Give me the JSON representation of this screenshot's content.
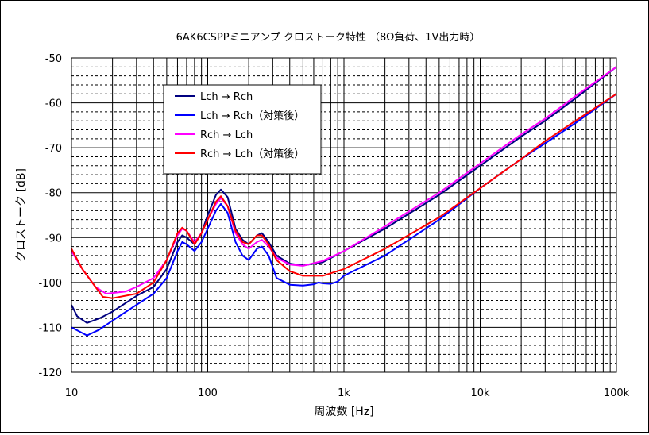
{
  "chart_data": {
    "type": "line",
    "title": "6AK6CSPPミニアンプ クロストーク特性 （8Ω負荷、1V出力時）",
    "xlabel": "周波数 [Hz]",
    "ylabel": "クロストーク [dB]",
    "x_scale": "log",
    "xlim": [
      10,
      100000
    ],
    "ylim": [
      -120,
      -50
    ],
    "grid": true,
    "legend_position": "top-left",
    "x_ticks": [
      {
        "value": 10,
        "label": "10"
      },
      {
        "value": 100,
        "label": "100"
      },
      {
        "value": 1000,
        "label": "1k"
      },
      {
        "value": 10000,
        "label": "10k"
      },
      {
        "value": 100000,
        "label": "100k"
      }
    ],
    "y_ticks": [
      {
        "value": -50,
        "label": "-50"
      },
      {
        "value": -60,
        "label": "-60"
      },
      {
        "value": -70,
        "label": "-70"
      },
      {
        "value": -80,
        "label": "-80"
      },
      {
        "value": -90,
        "label": "-90"
      },
      {
        "value": -100,
        "label": "-100"
      },
      {
        "value": -110,
        "label": "-110"
      },
      {
        "value": -120,
        "label": "-120"
      }
    ],
    "series": [
      {
        "name": "Lch → Rch",
        "color": "#000080",
        "points": [
          [
            10,
            -105
          ],
          [
            11,
            -107.5
          ],
          [
            13,
            -109
          ],
          [
            16,
            -108
          ],
          [
            20,
            -106.5
          ],
          [
            30,
            -103
          ],
          [
            40,
            -101
          ],
          [
            50,
            -97
          ],
          [
            60,
            -91
          ],
          [
            65,
            -89.5
          ],
          [
            70,
            -90
          ],
          [
            80,
            -91.5
          ],
          [
            90,
            -89
          ],
          [
            100,
            -85
          ],
          [
            115,
            -80.5
          ],
          [
            125,
            -79.3
          ],
          [
            140,
            -81
          ],
          [
            160,
            -88
          ],
          [
            180,
            -90.5
          ],
          [
            200,
            -91.5
          ],
          [
            230,
            -89.5
          ],
          [
            250,
            -89
          ],
          [
            280,
            -91
          ],
          [
            320,
            -94
          ],
          [
            400,
            -95.8
          ],
          [
            500,
            -96.2
          ],
          [
            700,
            -95.5
          ],
          [
            1000,
            -93
          ],
          [
            2000,
            -88
          ],
          [
            5000,
            -80.5
          ],
          [
            10000,
            -74
          ],
          [
            20000,
            -67.5
          ],
          [
            30000,
            -64
          ],
          [
            50000,
            -59
          ],
          [
            100000,
            -52
          ]
        ]
      },
      {
        "name": "Lch → Rch（対策後）",
        "color": "#0000ff",
        "points": [
          [
            10,
            -110
          ],
          [
            13,
            -111.8
          ],
          [
            16,
            -110.5
          ],
          [
            20,
            -108.5
          ],
          [
            30,
            -105
          ],
          [
            40,
            -102.5
          ],
          [
            50,
            -99
          ],
          [
            60,
            -93
          ],
          [
            65,
            -91
          ],
          [
            70,
            -91.5
          ],
          [
            80,
            -93
          ],
          [
            90,
            -91
          ],
          [
            100,
            -88
          ],
          [
            115,
            -84
          ],
          [
            125,
            -82.5
          ],
          [
            140,
            -84.5
          ],
          [
            160,
            -91
          ],
          [
            180,
            -94
          ],
          [
            200,
            -95
          ],
          [
            230,
            -92.5
          ],
          [
            250,
            -92
          ],
          [
            280,
            -94
          ],
          [
            320,
            -99
          ],
          [
            400,
            -100.5
          ],
          [
            500,
            -100.7
          ],
          [
            600,
            -100.4
          ],
          [
            650,
            -100
          ],
          [
            700,
            -100.2
          ],
          [
            800,
            -100.3
          ],
          [
            900,
            -99.8
          ],
          [
            1000,
            -98.5
          ],
          [
            2000,
            -94
          ],
          [
            5000,
            -86
          ],
          [
            10000,
            -79
          ],
          [
            20000,
            -72.5
          ],
          [
            30000,
            -69
          ],
          [
            50000,
            -64.5
          ],
          [
            100000,
            -58
          ]
        ]
      },
      {
        "name": "Rch → Lch",
        "color": "#ff00ff",
        "points": [
          [
            10,
            -93
          ],
          [
            12,
            -97
          ],
          [
            15,
            -101
          ],
          [
            18,
            -102.5
          ],
          [
            25,
            -102
          ],
          [
            30,
            -101
          ],
          [
            40,
            -99
          ],
          [
            50,
            -95
          ],
          [
            60,
            -89.5
          ],
          [
            65,
            -88
          ],
          [
            70,
            -88.5
          ],
          [
            80,
            -91
          ],
          [
            90,
            -89
          ],
          [
            100,
            -86
          ],
          [
            115,
            -82.5
          ],
          [
            125,
            -81.2
          ],
          [
            140,
            -83
          ],
          [
            160,
            -89
          ],
          [
            180,
            -91.5
          ],
          [
            200,
            -92.5
          ],
          [
            230,
            -91
          ],
          [
            250,
            -90.5
          ],
          [
            280,
            -92
          ],
          [
            320,
            -94.5
          ],
          [
            400,
            -96
          ],
          [
            500,
            -96.3
          ],
          [
            700,
            -95.2
          ],
          [
            1000,
            -93
          ],
          [
            2000,
            -87.5
          ],
          [
            5000,
            -80
          ],
          [
            10000,
            -73.5
          ],
          [
            20000,
            -67
          ],
          [
            30000,
            -63.5
          ],
          [
            50000,
            -58.5
          ],
          [
            100000,
            -52
          ]
        ]
      },
      {
        "name": "Rch → Lch（対策後）",
        "color": "#ff0000",
        "points": [
          [
            10,
            -92.5
          ],
          [
            12,
            -97
          ],
          [
            15,
            -101
          ],
          [
            17,
            -103.2
          ],
          [
            20,
            -103.5
          ],
          [
            30,
            -102.5
          ],
          [
            40,
            -100
          ],
          [
            50,
            -95
          ],
          [
            60,
            -89
          ],
          [
            65,
            -87.8
          ],
          [
            70,
            -88.5
          ],
          [
            80,
            -91.5
          ],
          [
            90,
            -89
          ],
          [
            100,
            -86
          ],
          [
            115,
            -82
          ],
          [
            125,
            -80.8
          ],
          [
            140,
            -83
          ],
          [
            160,
            -88.5
          ],
          [
            180,
            -91
          ],
          [
            200,
            -91.5
          ],
          [
            230,
            -89.5
          ],
          [
            250,
            -89.5
          ],
          [
            280,
            -91.5
          ],
          [
            320,
            -95
          ],
          [
            400,
            -97.5
          ],
          [
            500,
            -98.5
          ],
          [
            700,
            -98.5
          ],
          [
            1000,
            -97
          ],
          [
            2000,
            -92.5
          ],
          [
            5000,
            -85.5
          ],
          [
            10000,
            -79
          ],
          [
            20000,
            -72.5
          ],
          [
            30000,
            -68.5
          ],
          [
            50000,
            -64
          ],
          [
            100000,
            -58
          ]
        ]
      }
    ]
  }
}
